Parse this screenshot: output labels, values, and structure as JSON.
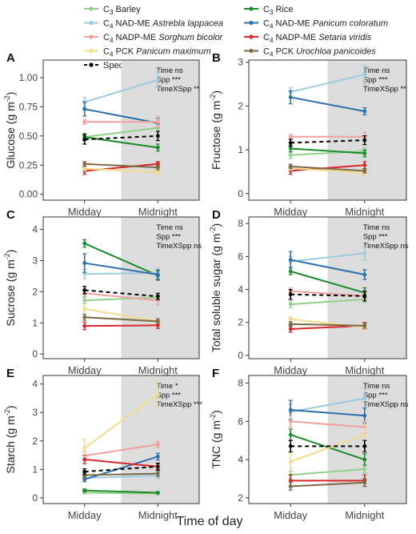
{
  "legend": {
    "items": [
      {
        "pre": "C",
        "sub": "3",
        "type": "",
        "species": "Barley",
        "color": "#8fd18a",
        "dashed": false
      },
      {
        "pre": "C",
        "sub": "3",
        "type": "",
        "species": "Rice",
        "color": "#1a8a2a",
        "dashed": false
      },
      {
        "pre": "C",
        "sub": "4",
        "type": "NAD-ME",
        "species": "Astrebla lappacea",
        "color": "#9ccbe0",
        "dashed": false
      },
      {
        "pre": "C",
        "sub": "4",
        "type": "NAD-ME",
        "species": "Panicum coloratum",
        "color": "#2e6fad",
        "dashed": false
      },
      {
        "pre": "C",
        "sub": "4",
        "type": "NADP-ME",
        "species": "Sorghum bicolor",
        "color": "#f2a0a0",
        "dashed": false
      },
      {
        "pre": "C",
        "sub": "4",
        "type": "NADP-ME",
        "species": "Setaria viridis",
        "color": "#d8262a",
        "dashed": false
      },
      {
        "pre": "C",
        "sub": "4",
        "type": "PCK",
        "species": "Panicum maximum",
        "color": "#f2dc8a",
        "dashed": false
      },
      {
        "pre": "C",
        "sub": "4",
        "type": "PCK",
        "species": "Urochloa panicoides",
        "color": "#7d6a45",
        "dashed": false
      },
      {
        "pre": "",
        "sub": "",
        "type": "",
        "species": "Species average",
        "color": "#000000",
        "dashed": true
      }
    ]
  },
  "xlabel": "Time of day",
  "chart_data": [
    {
      "id": "A",
      "type": "line",
      "categories": [
        "Midday",
        "Midnight"
      ],
      "ylabel_main": "Glucose (g m",
      "ylabel_sup": "-2",
      "ylabel_end": ")",
      "ylim": [
        -0.05,
        1.15
      ],
      "yticks": [
        0.0,
        0.25,
        0.5,
        0.75,
        1.0
      ],
      "ytick_labels": [
        "0.00",
        "0.25",
        "0.50",
        "0.75",
        "1.00"
      ],
      "stats": [
        "Time ns",
        "Spp ***",
        "TimeXSpp **"
      ],
      "series": [
        {
          "values": [
            0.49,
            0.57
          ],
          "err": [
            0.03,
            0.03
          ]
        },
        {
          "values": [
            0.49,
            0.4
          ],
          "err": [
            0.03,
            0.03
          ]
        },
        {
          "values": [
            0.79,
            0.98
          ],
          "err": [
            0.04,
            0.07
          ]
        },
        {
          "values": [
            0.73,
            0.61
          ],
          "err": [
            0.06,
            0.04
          ]
        },
        {
          "values": [
            0.62,
            0.62
          ],
          "err": [
            0.02,
            0.05
          ]
        },
        {
          "values": [
            0.2,
            0.26
          ],
          "err": [
            0.03,
            0.02
          ]
        },
        {
          "values": [
            0.22,
            0.19
          ],
          "err": [
            0.02,
            0.02
          ]
        },
        {
          "values": [
            0.26,
            0.23
          ],
          "err": [
            0.02,
            0.02
          ]
        },
        {
          "values": [
            0.47,
            0.5
          ],
          "err": [
            0.04,
            0.04
          ]
        }
      ]
    },
    {
      "id": "B",
      "type": "line",
      "categories": [
        "Midday",
        "Midnight"
      ],
      "ylabel_main": "Fructose (g m",
      "ylabel_sup": "-2",
      "ylabel_end": ")",
      "ylim": [
        -0.15,
        3.05
      ],
      "yticks": [
        0,
        1,
        2,
        3
      ],
      "ytick_labels": [
        "0",
        "1",
        "2",
        "3"
      ],
      "stats": [
        "Time ns",
        "Spp ***",
        "TimeXSpp **"
      ],
      "series": [
        {
          "values": [
            0.88,
            0.97
          ],
          "err": [
            0.08,
            0.08
          ]
        },
        {
          "values": [
            1.03,
            0.92
          ],
          "err": [
            0.08,
            0.08
          ]
        },
        {
          "values": [
            2.32,
            2.72
          ],
          "err": [
            0.1,
            0.2
          ]
        },
        {
          "values": [
            2.2,
            1.88
          ],
          "err": [
            0.15,
            0.08
          ]
        },
        {
          "values": [
            1.3,
            1.3
          ],
          "err": [
            0.05,
            0.1
          ]
        },
        {
          "values": [
            0.52,
            0.65
          ],
          "err": [
            0.08,
            0.08
          ]
        },
        {
          "values": [
            0.58,
            0.47
          ],
          "err": [
            0.05,
            0.05
          ]
        },
        {
          "values": [
            0.62,
            0.52
          ],
          "err": [
            0.05,
            0.05
          ]
        },
        {
          "values": [
            1.16,
            1.22
          ],
          "err": [
            0.08,
            0.1
          ]
        }
      ]
    },
    {
      "id": "C",
      "type": "line",
      "categories": [
        "Midday",
        "Midnight"
      ],
      "ylabel_main": "Sucrose (g m",
      "ylabel_sup": "-2",
      "ylabel_end": ")",
      "ylim": [
        -0.15,
        4.4
      ],
      "yticks": [
        0,
        1,
        2,
        3,
        4
      ],
      "ytick_labels": [
        "0",
        "1",
        "2",
        "3",
        "4"
      ],
      "stats": [
        "Time ns",
        "Spp ***",
        "TimeXSpp ns"
      ],
      "series": [
        {
          "values": [
            1.72,
            1.82
          ],
          "err": [
            0.1,
            0.1
          ]
        },
        {
          "values": [
            3.55,
            2.52
          ],
          "err": [
            0.12,
            0.15
          ]
        },
        {
          "values": [
            2.57,
            2.6
          ],
          "err": [
            0.15,
            0.15
          ]
        },
        {
          "values": [
            2.92,
            2.55
          ],
          "err": [
            0.3,
            0.15
          ]
        },
        {
          "values": [
            1.95,
            1.72
          ],
          "err": [
            0.1,
            0.15
          ]
        },
        {
          "values": [
            0.9,
            0.92
          ],
          "err": [
            0.12,
            0.1
          ]
        },
        {
          "values": [
            1.45,
            1.05
          ],
          "err": [
            0.1,
            0.08
          ]
        },
        {
          "values": [
            1.18,
            1.05
          ],
          "err": [
            0.1,
            0.08
          ]
        },
        {
          "values": [
            2.05,
            1.85
          ],
          "err": [
            0.12,
            0.1
          ]
        }
      ]
    },
    {
      "id": "D",
      "type": "line",
      "categories": [
        "Midday",
        "Midnight"
      ],
      "ylabel_main": "Total soluble sugar (g m",
      "ylabel_sup": "-2",
      "ylabel_end": ")",
      "ylim": [
        -0.2,
        8.4
      ],
      "yticks": [
        0,
        2,
        4,
        6,
        8
      ],
      "ytick_labels": [
        "0",
        "2",
        "4",
        "6",
        "8"
      ],
      "stats": [
        "Time ns",
        "Spp ***",
        "TimeXSpp ns"
      ],
      "series": [
        {
          "values": [
            3.1,
            3.4
          ],
          "err": [
            0.2,
            0.2
          ]
        },
        {
          "values": [
            5.1,
            3.8
          ],
          "err": [
            0.2,
            0.3
          ]
        },
        {
          "values": [
            5.7,
            6.2
          ],
          "err": [
            0.3,
            0.4
          ]
        },
        {
          "values": [
            5.8,
            4.9
          ],
          "err": [
            0.5,
            0.3
          ]
        },
        {
          "values": [
            3.9,
            3.6
          ],
          "err": [
            0.2,
            0.2
          ]
        },
        {
          "values": [
            1.6,
            1.8
          ],
          "err": [
            0.2,
            0.2
          ]
        },
        {
          "values": [
            2.2,
            1.7
          ],
          "err": [
            0.15,
            0.15
          ]
        },
        {
          "values": [
            1.9,
            1.8
          ],
          "err": [
            0.15,
            0.15
          ]
        },
        {
          "values": [
            3.7,
            3.6
          ],
          "err": [
            0.3,
            0.3
          ]
        }
      ]
    },
    {
      "id": "E",
      "type": "line",
      "categories": [
        "Midday",
        "Midnight"
      ],
      "ylabel_main": "Starch (g m",
      "ylabel_sup": "-2",
      "ylabel_end": ")",
      "ylim": [
        -0.2,
        4.3
      ],
      "yticks": [
        0,
        1,
        2,
        3,
        4
      ],
      "ytick_labels": [
        "0",
        "1",
        "2",
        "3",
        "4"
      ],
      "stats": [
        "Time *",
        "Spp ***",
        "TimeXSpp ***"
      ],
      "series": [
        {
          "values": [
            0.18,
            0.15
          ],
          "err": [
            0.03,
            0.03
          ]
        },
        {
          "values": [
            0.26,
            0.18
          ],
          "err": [
            0.05,
            0.03
          ]
        },
        {
          "values": [
            0.7,
            0.78
          ],
          "err": [
            0.08,
            0.1
          ]
        },
        {
          "values": [
            0.65,
            1.45
          ],
          "err": [
            0.08,
            0.12
          ]
        },
        {
          "values": [
            1.48,
            1.88
          ],
          "err": [
            0.15,
            0.1
          ]
        },
        {
          "values": [
            1.35,
            1.1
          ],
          "err": [
            0.15,
            0.1
          ]
        },
        {
          "values": [
            1.75,
            3.65
          ],
          "err": [
            0.3,
            0.45
          ]
        },
        {
          "values": [
            0.8,
            0.85
          ],
          "err": [
            0.1,
            0.1
          ]
        },
        {
          "values": [
            0.92,
            1.1
          ],
          "err": [
            0.1,
            0.12
          ]
        }
      ]
    },
    {
      "id": "F",
      "type": "line",
      "categories": [
        "Midday",
        "Midnight"
      ],
      "ylabel_main": "TNC (g m",
      "ylabel_sup": "-2",
      "ylabel_end": ")",
      "ylim": [
        1.7,
        8.4
      ],
      "yticks": [
        2,
        4,
        6,
        8
      ],
      "ytick_labels": [
        "2",
        "4",
        "6",
        "8"
      ],
      "stats": [
        "Time ns",
        "Spp ***",
        "TimeXSpp ns"
      ],
      "series": [
        {
          "values": [
            3.2,
            3.5
          ],
          "err": [
            0.2,
            0.2
          ]
        },
        {
          "values": [
            5.3,
            4.0
          ],
          "err": [
            0.3,
            0.3
          ]
        },
        {
          "values": [
            6.5,
            7.2
          ],
          "err": [
            0.4,
            0.5
          ]
        },
        {
          "values": [
            6.6,
            6.3
          ],
          "err": [
            0.5,
            0.4
          ]
        },
        {
          "values": [
            6.0,
            5.7
          ],
          "err": [
            0.3,
            0.3
          ]
        },
        {
          "values": [
            2.9,
            2.9
          ],
          "err": [
            0.3,
            0.3
          ]
        },
        {
          "values": [
            3.9,
            5.3
          ],
          "err": [
            0.4,
            0.5
          ]
        },
        {
          "values": [
            2.6,
            2.8
          ],
          "err": [
            0.2,
            0.2
          ]
        },
        {
          "values": [
            4.7,
            4.7
          ],
          "err": [
            0.3,
            0.3
          ]
        }
      ]
    }
  ]
}
